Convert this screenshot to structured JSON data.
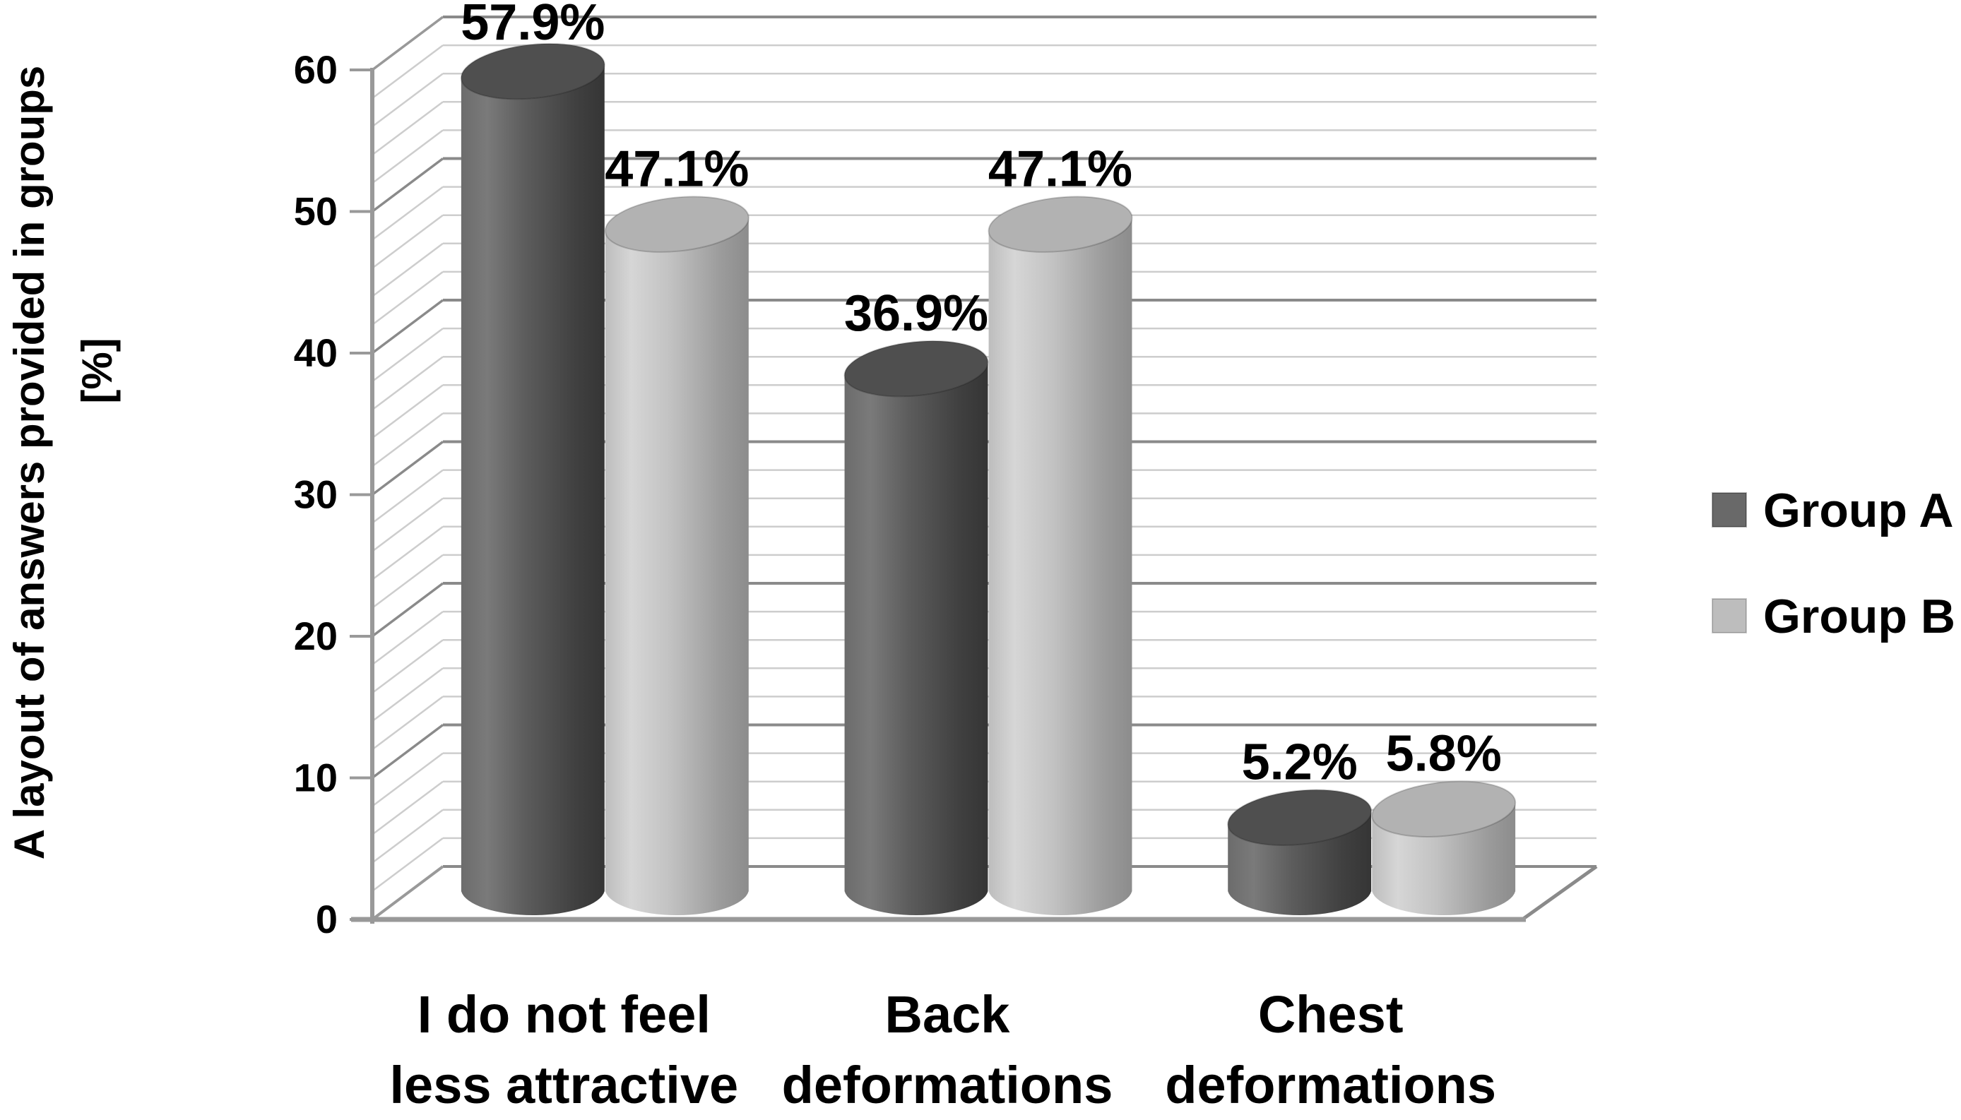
{
  "figure": {
    "background": "#ffffff",
    "plot_background": "#ffffff"
  },
  "chart_data": {
    "type": "bar",
    "style": "3d-cylinder",
    "title": "",
    "categories": [
      "I do not feel less attractive",
      "Back deformations",
      "Chest deformations"
    ],
    "categories_lines": [
      [
        "I do not feel",
        "less attractive"
      ],
      [
        "Back",
        "deformations"
      ],
      [
        "Chest",
        "deformations"
      ]
    ],
    "series": [
      {
        "name": "Group A",
        "color": "#696969",
        "values": [
          57.9,
          36.9,
          5.2
        ],
        "labels": [
          "57.9%",
          "36.9%",
          "5.2%"
        ]
      },
      {
        "name": "Group B",
        "color": "#bdbdbd",
        "values": [
          47.1,
          47.1,
          5.8
        ],
        "labels": [
          "47.1%",
          "47.1%",
          "5.8%"
        ]
      }
    ],
    "ylabel_lines": [
      "A layout of answers provided in groups",
      "[%]"
    ],
    "xlabel": "",
    "yticks": [
      0,
      10,
      20,
      30,
      40,
      50,
      60
    ],
    "ylim": [
      0,
      60
    ],
    "major_unit": 10,
    "minor_unit": 2,
    "grid": true,
    "grid_major_color": "#8a8a8a",
    "grid_minor_color": "#cdcdcd",
    "axis_color": "#999999",
    "legend_position": "right"
  }
}
